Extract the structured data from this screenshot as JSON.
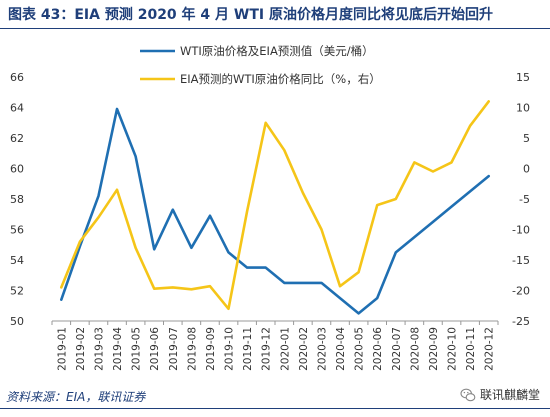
{
  "header": {
    "title": "图表 43：EIA 预测 2020 年 4 月 WTI 原油价格月度同比将见底后开始回升"
  },
  "footer": {
    "source": "资料来源：EIA，联讯证券",
    "watermark": "联讯麒麟堂"
  },
  "colors": {
    "wti": "#1f6fb2",
    "yoy": "#f5c518",
    "accent": "#1f3f7a"
  },
  "chart_data": {
    "type": "line",
    "title": "图表 43：EIA 预测 2020 年 4 月 WTI 原油价格月度同比将见底后开始回升",
    "categories": [
      "2019-01",
      "2019-02",
      "2019-03",
      "2019-04",
      "2019-05",
      "2019-06",
      "2019-07",
      "2019-08",
      "2019-09",
      "2019-10",
      "2019-11",
      "2019-12",
      "2020-01",
      "2020-02",
      "2020-03",
      "2020-04",
      "2020-05",
      "2020-06",
      "2020-07",
      "2020-08",
      "2020-09",
      "2020-10",
      "2020-11",
      "2020-12"
    ],
    "ylim_left": [
      50,
      66
    ],
    "yticks_left": [
      50,
      52,
      54,
      56,
      58,
      60,
      62,
      64,
      66
    ],
    "ylim_right": [
      -25,
      15
    ],
    "yticks_right": [
      -25,
      -20,
      -15,
      -10,
      -5,
      0,
      5,
      10,
      15
    ],
    "legend_placement": "top",
    "grid": false,
    "series": [
      {
        "name": "WTI原油价格及EIA预测值（美元/桶）",
        "axis": "left",
        "values": [
          51.4,
          54.9,
          58.2,
          63.9,
          60.8,
          54.7,
          57.3,
          54.8,
          56.9,
          54.5,
          53.5,
          53.5,
          52.5,
          52.5,
          52.5,
          51.5,
          50.5,
          51.5,
          54.5,
          55.5,
          56.5,
          57.5,
          58.5,
          59.5
        ]
      },
      {
        "name": "EIA预测的WTI原油价格同比（%，右）",
        "axis": "right",
        "values": [
          -19.5,
          -12.0,
          -8.0,
          -3.5,
          -13.0,
          -19.7,
          -19.5,
          -19.8,
          -19.3,
          -23.0,
          -7.0,
          7.5,
          3.0,
          -4.0,
          -10.0,
          -19.3,
          -17.0,
          -6.0,
          -5.0,
          1.0,
          -0.5,
          1.0,
          7.0,
          11.0
        ]
      }
    ]
  }
}
